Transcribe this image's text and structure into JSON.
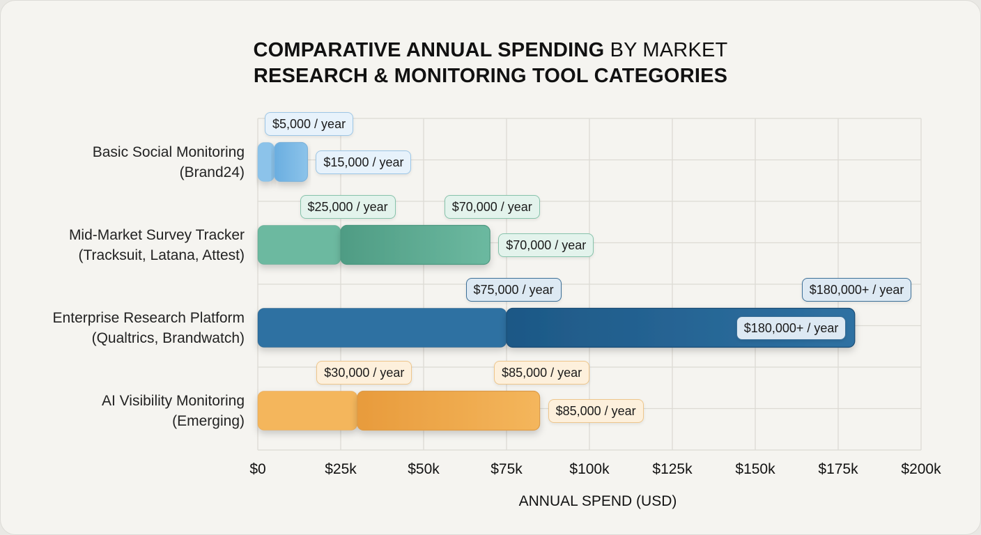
{
  "chart_data": {
    "type": "bar",
    "orientation": "horizontal",
    "stacked_ranges": true,
    "title_bold": "COMPARATIVE ANNUAL SPENDING",
    "title_rest": "BY MARKET",
    "title_line2": "RESEARCH & MONITORING TOOL CATEGORIES",
    "xlabel": "ANNUAL SPEND (USD)",
    "ylabel": "",
    "xlim": [
      0,
      200000
    ],
    "x_ticks": [
      0,
      25000,
      50000,
      75000,
      100000,
      125000,
      150000,
      175000,
      200000
    ],
    "x_tick_labels": [
      "$0",
      "$25k",
      "$50k",
      "$75k",
      "$100k",
      "$125k",
      "$150k",
      "$175k",
      "$200k"
    ],
    "grid": true,
    "categories": [
      {
        "line1": "Basic Social Monitoring",
        "line2": "(Brand24)"
      },
      {
        "line1": "Mid-Market Survey Tracker",
        "line2": "(Tracksuit, Latana, Attest)"
      },
      {
        "line1": "Enterprise Research Platform",
        "line2": "(Qualtrics, Brandwatch)"
      },
      {
        "line1": "AI Visibility Monitoring",
        "line2": "(Emerging)"
      }
    ],
    "bars": [
      {
        "low": 5000,
        "high": 15000,
        "low_label": "$5,000 / year",
        "high_label": "$15,000 / year",
        "end_label": null,
        "colors": {
          "base": "#8cc3ea",
          "range": "#6aaee0",
          "border": "#7fb3da",
          "label_bg": "#e7f2fb",
          "label_border": "#9cc6e6"
        }
      },
      {
        "low": 25000,
        "high": 70000,
        "low_label": "$25,000 / year",
        "high_label": "$70,000 / year",
        "end_label": "$70,000 / year",
        "colors": {
          "base": "#6cb9a0",
          "range": "#4f9c84",
          "border": "#4e9880",
          "label_bg": "#e3f3ec",
          "label_border": "#86c3ab"
        }
      },
      {
        "low": 75000,
        "high": 180000,
        "low_label": "$75,000 / year",
        "high_label": "$180,000+ / year",
        "end_label": "$180,000+ / year",
        "colors": {
          "base": "#2f71a2",
          "range": "#1d5886",
          "border": "#1b4d75",
          "label_bg": "#dde9f3",
          "label_border": "#3c6f97"
        }
      },
      {
        "low": 30000,
        "high": 85000,
        "low_label": "$30,000 / year",
        "high_label": "$85,000 / year",
        "end_label": "$85,000 / year",
        "colors": {
          "base": "#f4b65c",
          "range": "#e89b3c",
          "border": "#dc9b48",
          "label_bg": "#fdf0dc",
          "label_border": "#eec68b"
        }
      }
    ]
  }
}
